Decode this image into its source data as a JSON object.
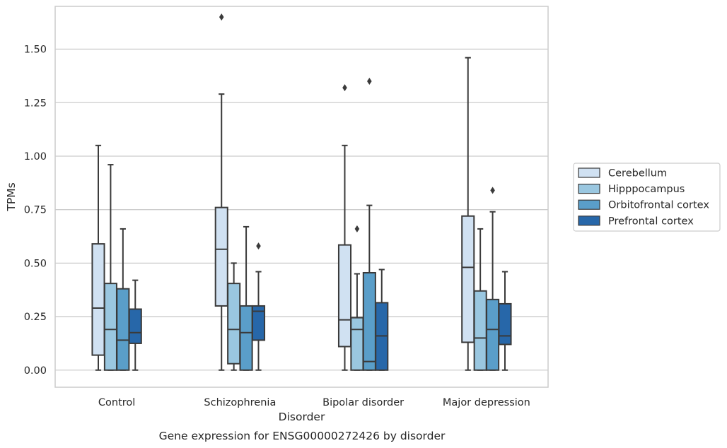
{
  "caption": "Gene expression for ENSG00000272426 by disorder",
  "chart_data": {
    "type": "box",
    "title": "",
    "xlabel": "Disorder",
    "ylabel": "TPMs",
    "categories": [
      "Control",
      "Schizophrenia",
      "Bipolar disorder",
      "Major depression"
    ],
    "ylim": [
      -0.08,
      1.7
    ],
    "yticks": [
      0.0,
      0.25,
      0.5,
      0.75,
      1.0,
      1.25,
      1.5
    ],
    "ytick_labels": [
      "0.00",
      "0.25",
      "0.50",
      "0.75",
      "1.00",
      "1.25",
      "1.50"
    ],
    "grid": "horizontal",
    "legend_position": "right",
    "series": [
      {
        "name": "Cerebellum",
        "color": "#d0e1f2",
        "boxes": [
          {
            "whislo": 0.0,
            "q1": 0.07,
            "med": 0.29,
            "q3": 0.59,
            "whishi": 1.05,
            "fliers": []
          },
          {
            "whislo": 0.0,
            "q1": 0.3,
            "med": 0.565,
            "q3": 0.76,
            "whishi": 1.29,
            "fliers": [
              1.65
            ]
          },
          {
            "whislo": 0.0,
            "q1": 0.11,
            "med": 0.235,
            "q3": 0.585,
            "whishi": 1.05,
            "fliers": [
              1.32
            ]
          },
          {
            "whislo": 0.0,
            "q1": 0.13,
            "med": 0.48,
            "q3": 0.72,
            "whishi": 1.46,
            "fliers": []
          }
        ]
      },
      {
        "name": "Hipppocampus",
        "color": "#9ac7e0",
        "boxes": [
          {
            "whislo": 0.0,
            "q1": 0.0,
            "med": 0.19,
            "q3": 0.405,
            "whishi": 0.96,
            "fliers": []
          },
          {
            "whislo": 0.0,
            "q1": 0.03,
            "med": 0.19,
            "q3": 0.405,
            "whishi": 0.5,
            "fliers": []
          },
          {
            "whislo": 0.0,
            "q1": 0.0,
            "med": 0.19,
            "q3": 0.245,
            "whishi": 0.45,
            "fliers": [
              0.66
            ]
          },
          {
            "whislo": 0.0,
            "q1": 0.0,
            "med": 0.15,
            "q3": 0.37,
            "whishi": 0.66,
            "fliers": []
          }
        ]
      },
      {
        "name": "Orbitofrontal cortex",
        "color": "#5a9ec9",
        "boxes": [
          {
            "whislo": 0.0,
            "q1": 0.0,
            "med": 0.14,
            "q3": 0.38,
            "whishi": 0.66,
            "fliers": []
          },
          {
            "whislo": 0.0,
            "q1": 0.0,
            "med": 0.175,
            "q3": 0.3,
            "whishi": 0.67,
            "fliers": []
          },
          {
            "whislo": 0.0,
            "q1": 0.0,
            "med": 0.04,
            "q3": 0.455,
            "whishi": 0.77,
            "fliers": [
              1.35
            ]
          },
          {
            "whislo": 0.0,
            "q1": 0.0,
            "med": 0.19,
            "q3": 0.33,
            "whishi": 0.74,
            "fliers": [
              0.84
            ]
          }
        ]
      },
      {
        "name": "Prefrontal cortex",
        "color": "#2767a9",
        "boxes": [
          {
            "whislo": 0.0,
            "q1": 0.125,
            "med": 0.175,
            "q3": 0.285,
            "whishi": 0.42,
            "fliers": []
          },
          {
            "whislo": 0.0,
            "q1": 0.14,
            "med": 0.275,
            "q3": 0.3,
            "whishi": 0.46,
            "fliers": [
              0.58
            ]
          },
          {
            "whislo": 0.0,
            "q1": 0.0,
            "med": 0.16,
            "q3": 0.315,
            "whishi": 0.47,
            "fliers": []
          },
          {
            "whislo": 0.0,
            "q1": 0.12,
            "med": 0.16,
            "q3": 0.31,
            "whishi": 0.46,
            "fliers": []
          }
        ]
      }
    ]
  }
}
